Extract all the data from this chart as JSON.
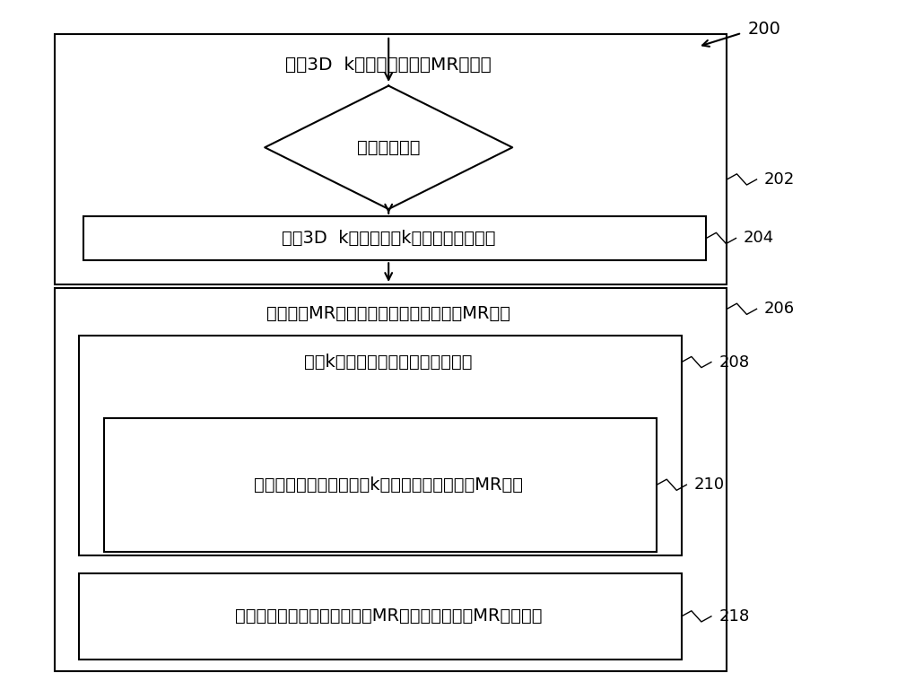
{
  "background_color": "#ffffff",
  "fig_width": 10.0,
  "fig_height": 7.79,
  "label_200_text": "200",
  "label_202_text": "202",
  "label_204_text": "204",
  "label_206_text": "206",
  "label_208_text": "208",
  "label_210_text": "210",
  "label_218_text": "218",
  "text_top": "采阆3D  k空间体积的功胾MR数据集",
  "text_diamond": "对于每个重复",
  "text_204": "采阆3D  k空间体积的k空间数据集的帧：",
  "text_206": "基于功胾MR数据集生成解剖图像和功胾MR图像",
  "text_208": "基于k空间数据集的帧生成解剖图像",
  "text_210": "使用多尺度低秩矩阵基于k空间数据集的帧重建MR图像",
  "text_218": "使用多尺度低秩矩阵基于功胾MR数据集生成功胾MR图像的帧",
  "fontsize_main": 14,
  "fontsize_label": 13,
  "lw": 1.5
}
